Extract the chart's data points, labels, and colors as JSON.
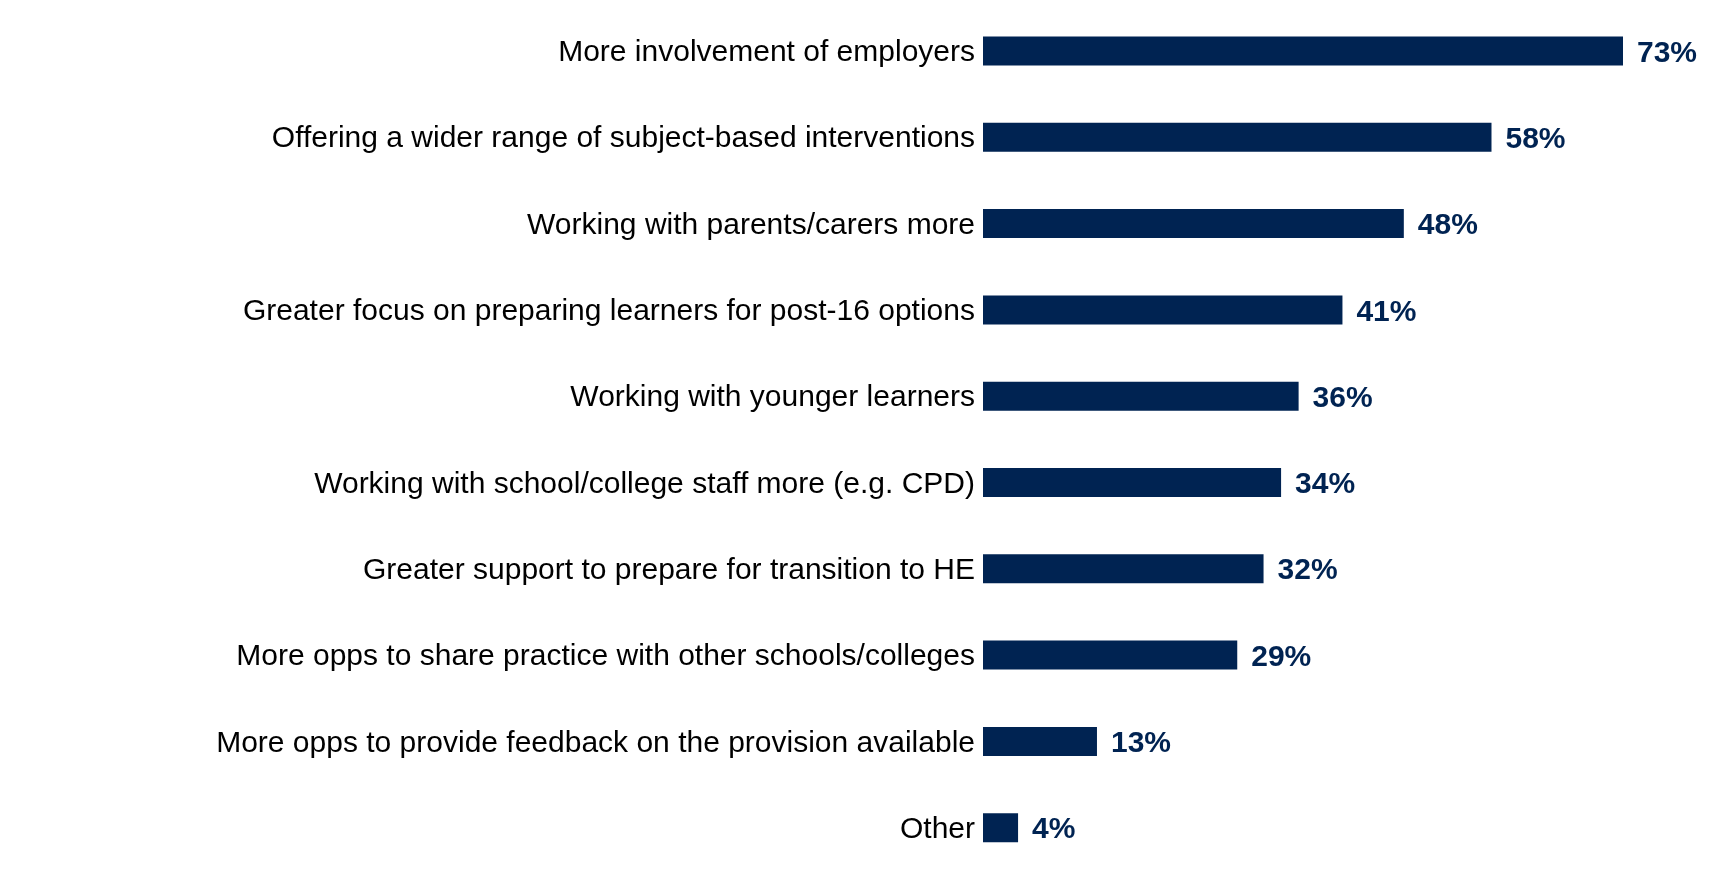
{
  "chart_data": {
    "type": "bar",
    "orientation": "horizontal",
    "categories": [
      "More involvement of employers",
      "Offering a wider range of subject-based interventions",
      "Working with parents/carers more",
      "Greater focus on preparing learners for post-16 options",
      "Working with younger learners",
      "Working with school/college staff more (e.g. CPD)",
      "Greater support to prepare for transition to HE",
      "More opps to share practice with other schools/colleges",
      "More opps to provide feedback on the provision available",
      "Other"
    ],
    "values": [
      73,
      58,
      48,
      41,
      36,
      34,
      32,
      29,
      13,
      4
    ],
    "value_labels": [
      "73%",
      "58%",
      "48%",
      "41%",
      "36%",
      "34%",
      "32%",
      "29%",
      "13%",
      "4%"
    ],
    "color": "#002352",
    "grid": false,
    "legend": false
  }
}
